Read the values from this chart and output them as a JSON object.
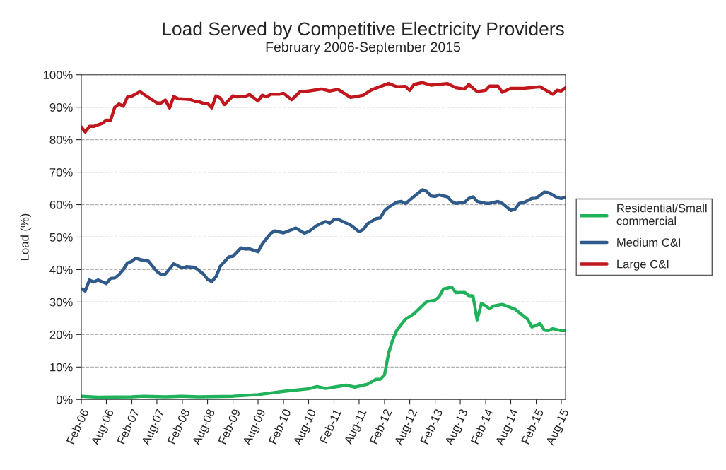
{
  "chart_data": {
    "type": "line",
    "title": "Load Served by Competitive Electricity Providers",
    "subtitle": "February 2006-September 2015",
    "ylabel": "Load (%)",
    "xlim": [
      "2006-02",
      "2015-09"
    ],
    "xticks": [
      {
        "value": "2006-02",
        "label": "Feb-06"
      },
      {
        "value": "2006-08",
        "label": "Aug-06"
      },
      {
        "value": "2007-02",
        "label": "Feb-07"
      },
      {
        "value": "2007-08",
        "label": "Aug-07"
      },
      {
        "value": "2008-02",
        "label": "Feb-08"
      },
      {
        "value": "2008-08",
        "label": "Aug-08"
      },
      {
        "value": "2009-02",
        "label": "Feb-09"
      },
      {
        "value": "2009-08",
        "label": "Aug-09"
      },
      {
        "value": "2010-02",
        "label": "Feb-10"
      },
      {
        "value": "2010-08",
        "label": "Aug-10"
      },
      {
        "value": "2011-02",
        "label": "Feb-11"
      },
      {
        "value": "2011-08",
        "label": "Aug-11"
      },
      {
        "value": "2012-02",
        "label": "Feb-12"
      },
      {
        "value": "2012-08",
        "label": "Aug-12"
      },
      {
        "value": "2013-02",
        "label": "Feb-13"
      },
      {
        "value": "2013-08",
        "label": "Aug-13"
      },
      {
        "value": "2014-02",
        "label": "Feb-14"
      },
      {
        "value": "2014-08",
        "label": "Aug-14"
      },
      {
        "value": "2015-02",
        "label": "Feb-15"
      },
      {
        "value": "2015-08",
        "label": "Aug-15"
      }
    ],
    "ylim": [
      0,
      100
    ],
    "yticks": [
      {
        "value": 0,
        "label": "0%"
      },
      {
        "value": 10,
        "label": "10%"
      },
      {
        "value": 20,
        "label": "20%"
      },
      {
        "value": 30,
        "label": "30%"
      },
      {
        "value": 40,
        "label": "40%"
      },
      {
        "value": 50,
        "label": "50%"
      },
      {
        "value": 60,
        "label": "60%"
      },
      {
        "value": 70,
        "label": "70%"
      },
      {
        "value": 80,
        "label": "80%"
      },
      {
        "value": 90,
        "label": "90%"
      },
      {
        "value": 100,
        "label": "100%"
      }
    ],
    "grid": "y",
    "legend": "right",
    "marker": "none",
    "line_style": "solid",
    "series": [
      {
        "name": "Residential/Small commercial",
        "color": "#1fb25a",
        "x": [
          "2006-02",
          "2006-06",
          "2007-02",
          "2007-05",
          "2007-10",
          "2008-02",
          "2008-06",
          "2009-02",
          "2009-08",
          "2010-02",
          "2010-08",
          "2010-10",
          "2010-12",
          "2011-02",
          "2011-05",
          "2011-07",
          "2011-10",
          "2011-12",
          "2012-01",
          "2012-02",
          "2012-03",
          "2012-04",
          "2012-05",
          "2012-07",
          "2012-09",
          "2012-12",
          "2013-02",
          "2013-03",
          "2013-04",
          "2013-06",
          "2013-07",
          "2013-09",
          "2013-10",
          "2013-11",
          "2013-12",
          "2014-01",
          "2014-03",
          "2014-04",
          "2014-06",
          "2014-09",
          "2014-12",
          "2015-01",
          "2015-03",
          "2015-04",
          "2015-05",
          "2015-06",
          "2015-08",
          "2015-09"
        ],
        "values": [
          1.0,
          0.7,
          0.8,
          1.0,
          0.8,
          1.0,
          0.8,
          1.0,
          1.5,
          2.5,
          3.3,
          4.0,
          3.4,
          3.8,
          4.4,
          3.8,
          4.7,
          6.2,
          6.2,
          7.6,
          14.2,
          18.5,
          21.4,
          24.7,
          26.4,
          30.1,
          30.6,
          31.6,
          34.0,
          34.6,
          32.9,
          33.0,
          32.0,
          31.9,
          24.5,
          29.6,
          28.0,
          28.8,
          29.3,
          27.8,
          24.7,
          22.3,
          23.4,
          21.3,
          21.2,
          21.8,
          21.2,
          21.2
        ]
      },
      {
        "name": "Medium C&I",
        "color": "#2f5a8a",
        "x": [
          "2006-02",
          "2006-03",
          "2006-04",
          "2006-05",
          "2006-06",
          "2006-08",
          "2006-09",
          "2006-10",
          "2006-11",
          "2006-12",
          "2007-01",
          "2007-02",
          "2007-03",
          "2007-04",
          "2007-06",
          "2007-08",
          "2007-09",
          "2007-10",
          "2007-12",
          "2008-02",
          "2008-03",
          "2008-05",
          "2008-07",
          "2008-08",
          "2008-09",
          "2008-10",
          "2008-11",
          "2009-01",
          "2009-02",
          "2009-04",
          "2009-05",
          "2009-06",
          "2009-08",
          "2009-09",
          "2009-11",
          "2009-12",
          "2010-02",
          "2010-05",
          "2010-07",
          "2010-08",
          "2010-10",
          "2010-12",
          "2011-01",
          "2011-02",
          "2011-03",
          "2011-06",
          "2011-08",
          "2011-09",
          "2011-10",
          "2011-12",
          "2012-01",
          "2012-02",
          "2012-03",
          "2012-05",
          "2012-06",
          "2012-07",
          "2012-09",
          "2012-11",
          "2012-12",
          "2013-01",
          "2013-02",
          "2013-03",
          "2013-05",
          "2013-06",
          "2013-07",
          "2013-09",
          "2013-10",
          "2013-11",
          "2013-12",
          "2014-02",
          "2014-03",
          "2014-05",
          "2014-06",
          "2014-08",
          "2014-09",
          "2014-10",
          "2014-11",
          "2015-01",
          "2015-02",
          "2015-04",
          "2015-05",
          "2015-07",
          "2015-08",
          "2015-09"
        ],
        "values": [
          34.1,
          33.4,
          36.8,
          36.2,
          36.8,
          35.7,
          37.3,
          37.4,
          38.5,
          40.0,
          42.1,
          42.5,
          43.6,
          43.1,
          42.6,
          39.4,
          38.5,
          38.6,
          41.8,
          40.5,
          40.9,
          40.7,
          38.7,
          37.0,
          36.3,
          37.8,
          41.0,
          43.9,
          44.1,
          46.7,
          46.3,
          46.4,
          45.5,
          47.9,
          51.2,
          51.9,
          51.3,
          52.8,
          51.2,
          51.7,
          53.6,
          54.8,
          54.3,
          55.4,
          55.5,
          53.7,
          51.7,
          52.4,
          54.1,
          55.7,
          55.9,
          58.1,
          59.2,
          60.8,
          61.0,
          60.3,
          62.5,
          64.6,
          64.1,
          62.7,
          62.5,
          63.0,
          62.4,
          61.0,
          60.4,
          60.7,
          61.9,
          62.4,
          61.0,
          60.4,
          60.4,
          61.0,
          60.4,
          58.2,
          58.6,
          60.4,
          60.6,
          61.9,
          62.0,
          63.9,
          63.7,
          62.2,
          61.9,
          62.3
        ]
      },
      {
        "name": "Large C&I",
        "color": "#c0161c",
        "x": [
          "2006-02",
          "2006-03",
          "2006-04",
          "2006-05",
          "2006-07",
          "2006-08",
          "2006-09",
          "2006-10",
          "2006-11",
          "2006-12",
          "2007-01",
          "2007-02",
          "2007-04",
          "2007-05",
          "2007-08",
          "2007-09",
          "2007-10",
          "2007-11",
          "2007-12",
          "2008-01",
          "2008-04",
          "2008-05",
          "2008-06",
          "2008-07",
          "2008-08",
          "2008-09",
          "2008-10",
          "2008-11",
          "2008-12",
          "2009-02",
          "2009-03",
          "2009-05",
          "2009-06",
          "2009-08",
          "2009-09",
          "2009-10",
          "2009-11",
          "2010-01",
          "2010-02",
          "2010-04",
          "2010-06",
          "2010-08",
          "2010-11",
          "2011-01",
          "2011-03",
          "2011-06",
          "2011-09",
          "2011-11",
          "2012-03",
          "2012-05",
          "2012-07",
          "2012-08",
          "2012-09",
          "2012-11",
          "2013-01",
          "2013-05",
          "2013-07",
          "2013-09",
          "2013-10",
          "2013-12",
          "2014-02",
          "2014-03",
          "2014-05",
          "2014-06",
          "2014-08",
          "2014-11",
          "2015-03",
          "2015-06",
          "2015-07",
          "2015-08",
          "2015-09"
        ],
        "values": [
          83.9,
          82.4,
          84.1,
          84.1,
          85.0,
          86.0,
          86.0,
          90.0,
          91.0,
          90.3,
          93.2,
          93.4,
          94.8,
          93.9,
          91.3,
          91.3,
          92.2,
          89.8,
          93.3,
          92.6,
          92.4,
          91.7,
          91.7,
          91.2,
          91.2,
          89.8,
          93.5,
          92.8,
          90.8,
          93.5,
          93.2,
          93.3,
          93.9,
          91.9,
          93.7,
          93.2,
          94.0,
          94.0,
          94.3,
          92.3,
          94.8,
          95.0,
          95.6,
          95.0,
          95.5,
          93.0,
          93.7,
          95.4,
          97.3,
          96.3,
          96.4,
          95.2,
          97.0,
          97.6,
          96.8,
          97.3,
          96.0,
          95.6,
          97.0,
          94.8,
          95.2,
          96.5,
          96.5,
          94.6,
          95.8,
          95.8,
          96.3,
          94.0,
          95.2,
          95.0,
          96.0
        ]
      }
    ]
  }
}
